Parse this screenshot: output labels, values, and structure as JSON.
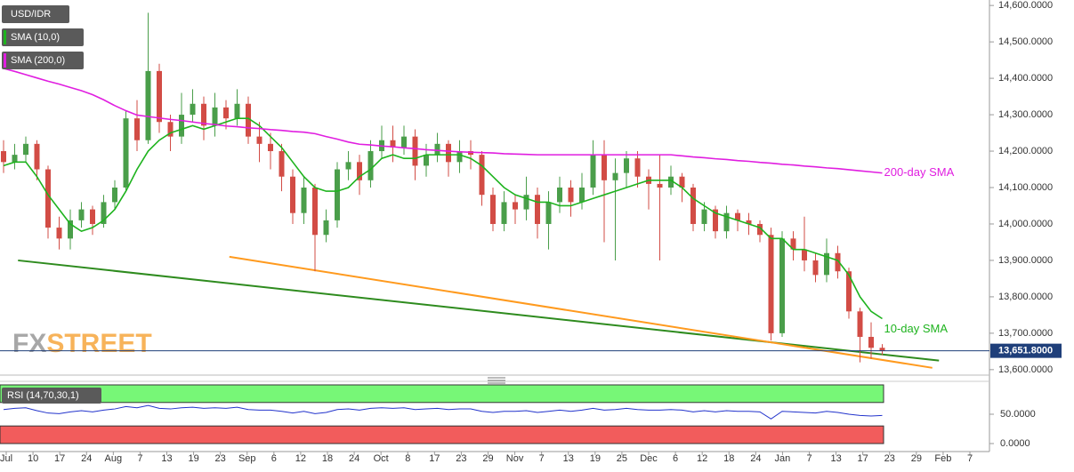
{
  "chart_data": {
    "type": "candlestick",
    "symbol": "USD/IDR",
    "open": [
      14200,
      14170,
      14190,
      14220,
      14150,
      13990,
      13960,
      14010,
      14040,
      14000,
      14060,
      14100,
      14290,
      14230,
      14420,
      14280,
      14240,
      14300,
      14330,
      14270,
      14320,
      14290,
      14330,
      14240,
      14220,
      14200,
      14130,
      14030,
      14100,
      13970,
      14010,
      14150,
      14170,
      14120,
      14200,
      14230,
      14210,
      14240,
      14160,
      14190,
      14220,
      14170,
      14200,
      14190,
      14080,
      14000,
      14060,
      14040,
      14080,
      14000,
      14060,
      14100,
      14060,
      14100,
      14190,
      14120,
      14140,
      14180,
      14130,
      14110,
      14100,
      14130,
      14100,
      14000,
      14040,
      13980,
      14030,
      14010,
      14000,
      13970,
      13700,
      13960,
      13930,
      13900,
      13860,
      13920,
      13870,
      13760,
      13690,
      13660
    ],
    "high": [
      14230,
      14220,
      14240,
      14230,
      14160,
      14020,
      14040,
      14060,
      14050,
      14080,
      14120,
      14310,
      14340,
      14580,
      14440,
      14300,
      14360,
      14370,
      14350,
      14360,
      14340,
      14370,
      14350,
      14280,
      14250,
      14220,
      14150,
      14130,
      14110,
      14040,
      14170,
      14200,
      14190,
      14230,
      14270,
      14270,
      14270,
      14260,
      14220,
      14250,
      14230,
      14230,
      14230,
      14200,
      14100,
      14090,
      14080,
      14130,
      14100,
      14090,
      14130,
      14120,
      14140,
      14230,
      14230,
      14180,
      14200,
      14200,
      14150,
      14190,
      14160,
      14140,
      14110,
      14060,
      14050,
      14050,
      14040,
      14030,
      14010,
      13990,
      13980,
      13980,
      14020,
      13920,
      13960,
      13940,
      13880,
      13770,
      13730,
      13670
    ],
    "low": [
      14140,
      14150,
      14170,
      14120,
      13960,
      13930,
      13930,
      13990,
      13970,
      13990,
      14040,
      14090,
      14200,
      14220,
      14250,
      14200,
      14220,
      14280,
      14230,
      14240,
      14260,
      14270,
      14220,
      14170,
      14150,
      14090,
      14000,
      14000,
      13870,
      13950,
      13990,
      14120,
      14080,
      14100,
      14180,
      14170,
      14190,
      14120,
      14130,
      14170,
      14130,
      14140,
      14150,
      14050,
      13980,
      13980,
      14000,
      14010,
      13960,
      13930,
      14030,
      14020,
      14040,
      14080,
      13950,
      13900,
      14100,
      14100,
      14040,
      13900,
      14080,
      14060,
      13980,
      13980,
      13960,
      13960,
      13980,
      13970,
      13950,
      13680,
      13690,
      13900,
      13870,
      13840,
      13840,
      13850,
      13740,
      13620,
      13630,
      13640
    ],
    "close": [
      14170,
      14190,
      14220,
      14150,
      13990,
      13960,
      14010,
      14040,
      14000,
      14060,
      14100,
      14290,
      14230,
      14420,
      14280,
      14240,
      14300,
      14330,
      14270,
      14320,
      14290,
      14330,
      14240,
      14220,
      14200,
      14130,
      14030,
      14100,
      13970,
      14010,
      14150,
      14170,
      14120,
      14200,
      14230,
      14210,
      14240,
      14160,
      14190,
      14220,
      14170,
      14200,
      14190,
      14080,
      14000,
      14060,
      14040,
      14080,
      14000,
      14060,
      14100,
      14060,
      14100,
      14190,
      14120,
      14140,
      14180,
      14130,
      14110,
      14100,
      14130,
      14100,
      14000,
      14040,
      13980,
      14030,
      14010,
      14000,
      13970,
      13700,
      13960,
      13930,
      13900,
      13860,
      13920,
      13870,
      13760,
      13690,
      13660,
      13651.8
    ],
    "up_color": "#4a9e4a",
    "down_color": "#d24c45",
    "series": [
      {
        "name": "SMA (10,0)",
        "color": "#1eb31e",
        "annotation": "10-day SMA",
        "values": [
          14160,
          14170,
          14170,
          14130,
          14080,
          14040,
          14000,
          13980,
          13990,
          14010,
          14040,
          14090,
          14150,
          14200,
          14230,
          14250,
          14260,
          14270,
          14260,
          14270,
          14280,
          14290,
          14290,
          14270,
          14240,
          14210,
          14170,
          14130,
          14100,
          14090,
          14090,
          14100,
          14130,
          14150,
          14180,
          14190,
          14180,
          14180,
          14190,
          14190,
          14190,
          14190,
          14180,
          14160,
          14130,
          14100,
          14080,
          14070,
          14060,
          14060,
          14050,
          14050,
          14060,
          14070,
          14080,
          14090,
          14100,
          14110,
          14120,
          14120,
          14120,
          14100,
          14070,
          14050,
          14030,
          14020,
          14010,
          14000,
          13990,
          13960,
          13960,
          13930,
          13930,
          13920,
          13910,
          13900,
          13860,
          13800,
          13760,
          13740
        ]
      },
      {
        "name": "SMA (200,0)",
        "color": "#e01ee0",
        "annotation": "200-day SMA",
        "values": [
          14427,
          14419,
          14410,
          14401,
          14392,
          14384,
          14375,
          14366,
          14355,
          14341,
          14325,
          14311,
          14299,
          14295,
          14291,
          14287,
          14284,
          14280,
          14276,
          14273,
          14269,
          14267,
          14264,
          14262,
          14259,
          14257,
          14254,
          14252,
          14248,
          14240,
          14233,
          14225,
          14219,
          14217,
          14214,
          14212,
          14209,
          14207,
          14204,
          14202,
          14200,
          14198,
          14197,
          14196,
          14195,
          14193,
          14192,
          14191,
          14190,
          14190,
          14190,
          14190,
          14190,
          14190,
          14190,
          14190,
          14190,
          14190,
          14190,
          14190,
          14190,
          14187,
          14184,
          14182,
          14179,
          14177,
          14174,
          14172,
          14169,
          14167,
          14164,
          14162,
          14159,
          14157,
          14154,
          14152,
          14149,
          14146,
          14143,
          14140
        ]
      }
    ],
    "trendlines": [
      {
        "color": "#2e8b1e",
        "start": [
          1.3,
          13900
        ],
        "end": [
          84.1,
          13625
        ]
      },
      {
        "color": "#ff9a1e",
        "start": [
          20.3,
          13910
        ],
        "end": [
          83.5,
          13605
        ]
      }
    ],
    "last_price": {
      "value": 13651.8,
      "label": "13,651.8000",
      "color": "#1f3f7a"
    },
    "ylim": [
      13585,
      14615
    ],
    "yticks": [
      {
        "value": 13600,
        "label": "13,600.0000"
      },
      {
        "value": 13700,
        "label": "13,700.0000"
      },
      {
        "value": 13800,
        "label": "13,800.0000"
      },
      {
        "value": 13900,
        "label": "13,900.0000"
      },
      {
        "value": 14000,
        "label": "14,000.0000"
      },
      {
        "value": 14100,
        "label": "14,100.0000"
      },
      {
        "value": 14200,
        "label": "14,200.0000"
      },
      {
        "value": 14300,
        "label": "14,300.0000"
      },
      {
        "value": 14400,
        "label": "14,400.0000"
      },
      {
        "value": 14500,
        "label": "14,500.0000"
      },
      {
        "value": 14600,
        "label": "14,600.0000"
      }
    ],
    "x_axis_labels": [
      "Jul",
      "10",
      "17",
      "24",
      "Aug",
      "7",
      "13",
      "19",
      "23",
      "Sep",
      "6",
      "12",
      "18",
      "24",
      "Oct",
      "8",
      "17",
      "23",
      "29",
      "Nov",
      "7",
      "13",
      "19",
      "25",
      "Dec",
      "6",
      "12",
      "18",
      "24",
      "Jan",
      "7",
      "13",
      "17",
      "23",
      "29",
      "Feb",
      "7"
    ],
    "watermark": [
      "FX",
      "STREET"
    ],
    "rsi": {
      "name": "RSI (14,70,30,1)",
      "color": "#2233cc",
      "upper_color": "#77f777",
      "lower_color": "#f25c5c",
      "upper": 70,
      "lower": 30,
      "ylim": [
        0,
        100
      ],
      "yticks": [
        {
          "value": 50,
          "label": "50.0000"
        },
        {
          "value": 0,
          "label": "0.0000"
        }
      ],
      "values": [
        58,
        60,
        61,
        56,
        52,
        51,
        54,
        56,
        54,
        57,
        59,
        63,
        61,
        65,
        60,
        59,
        61,
        62,
        60,
        61,
        60,
        62,
        58,
        57,
        57,
        55,
        52,
        55,
        51,
        53,
        58,
        59,
        57,
        60,
        61,
        60,
        61,
        58,
        59,
        60,
        58,
        59,
        59,
        55,
        53,
        55,
        55,
        56,
        53,
        55,
        57,
        55,
        57,
        60,
        57,
        58,
        60,
        58,
        57,
        57,
        58,
        57,
        54,
        56,
        54,
        56,
        55,
        55,
        54,
        42,
        55,
        54,
        53,
        52,
        55,
        53,
        50,
        48,
        47,
        48
      ]
    }
  }
}
